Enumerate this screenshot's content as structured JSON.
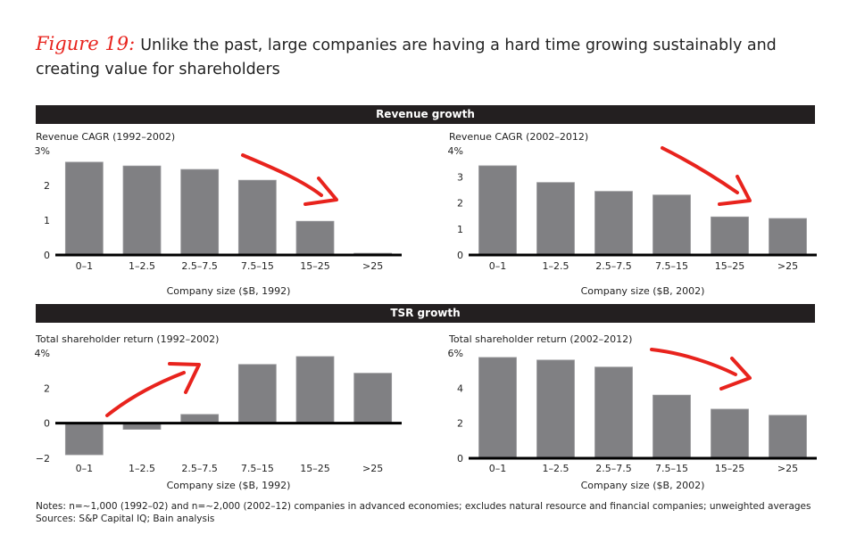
{
  "figure": {
    "label": "Figure 19:",
    "title": "Unlike the past, large companies are having a hard time growing sustainably and creating value for shareholders"
  },
  "sections": {
    "revenue": "Revenue growth",
    "tsr": "TSR growth"
  },
  "colors": {
    "bar": "#808083",
    "accent_arrow": "#e8231d",
    "header_band": "#231f20"
  },
  "chart_data": [
    {
      "type": "bar",
      "title": "Revenue CAGR (1992–2002)",
      "xlabel": "Company size ($B, 1992)",
      "ylim": [
        0,
        3
      ],
      "yticks": [
        "0",
        "1",
        "2",
        "3%"
      ],
      "ytick_values": [
        0,
        1,
        2,
        3
      ],
      "categories": [
        "0–1",
        "1–2.5",
        "2.5–7.5",
        "7.5–15",
        "15–25",
        ">25"
      ],
      "values": [
        2.67,
        2.56,
        2.46,
        2.15,
        0.97,
        0.05
      ],
      "annotation": "red arrow pointing down"
    },
    {
      "type": "bar",
      "title": "Revenue CAGR (2002–2012)",
      "xlabel": "Company size ($B, 2002)",
      "ylim": [
        0,
        4
      ],
      "yticks": [
        "0",
        "1",
        "2",
        "3",
        "4%"
      ],
      "ytick_values": [
        0,
        1,
        2,
        3,
        4
      ],
      "categories": [
        "0–1",
        "1–2.5",
        "2.5–7.5",
        "7.5–15",
        "15–25",
        ">25"
      ],
      "values": [
        3.42,
        2.78,
        2.44,
        2.3,
        1.46,
        1.4
      ],
      "annotation": "red arrow pointing down"
    },
    {
      "type": "bar",
      "title": "Total shareholder return (1992–2002)",
      "xlabel": "Company size ($B, 1992)",
      "ylim": [
        -2,
        4
      ],
      "yticks": [
        "−2",
        "0",
        "2",
        "4%"
      ],
      "ytick_values": [
        -2,
        0,
        2,
        4
      ],
      "categories": [
        "0–1",
        "1–2.5",
        "2.5–7.5",
        "7.5–15",
        "15–25",
        ">25"
      ],
      "values": [
        -1.8,
        -0.35,
        0.5,
        3.35,
        3.8,
        2.85
      ],
      "annotation": "red arrow pointing up"
    },
    {
      "type": "bar",
      "title": "Total shareholder return (2002–2012)",
      "xlabel": "Company size ($B, 2002)",
      "ylim": [
        0,
        6
      ],
      "yticks": [
        "0",
        "2",
        "4",
        "6%"
      ],
      "ytick_values": [
        0,
        2,
        4,
        6
      ],
      "categories": [
        "0–1",
        "1–2.5",
        "2.5–7.5",
        "7.5–15",
        "15–25",
        ">25"
      ],
      "values": [
        5.75,
        5.6,
        5.2,
        3.6,
        2.8,
        2.45
      ],
      "annotation": "red arrow pointing down"
    }
  ],
  "notes": "Notes: n=~1,000 (1992–02) and n=~2,000 (2002–12) companies in advanced economies; excludes natural resource and financial companies; unweighted averages",
  "sources": "Sources: S&P Capital IQ; Bain analysis"
}
